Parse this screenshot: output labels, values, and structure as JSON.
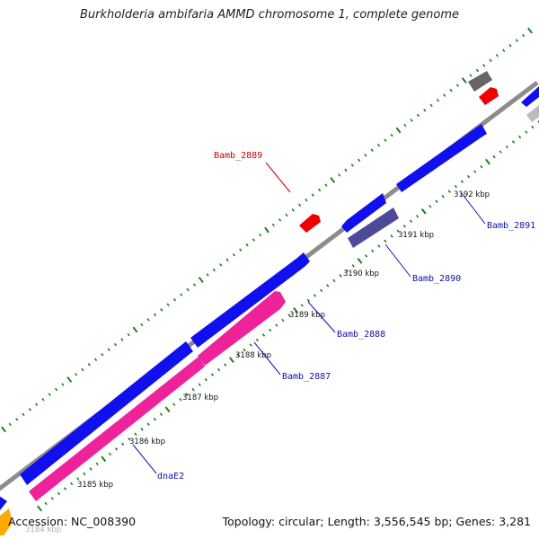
{
  "title": "Burkholderia ambifaria AMMD chromosome 1, complete genome",
  "footer": {
    "accession": "Accession: NC_008390",
    "summary": "Topology: circular; Length: 3,556,545 bp; Genes: 3,281"
  },
  "colors": {
    "backbone": "#8c8c8c",
    "tick": "#1a7f1a",
    "forward_gene": "#1010ee",
    "reverse_gene": "#ee2299",
    "pseudo_gene": "#4a4a99",
    "rna_gene": "#ee0000",
    "other_gene": "#666666",
    "highlight_label": "#cc0000",
    "gene_label": "#1111aa"
  },
  "tick_labels": [
    "3184 kbp",
    "3185 kbp",
    "3186 kbp",
    "3187 kbp",
    "3188 kbp",
    "3189 kbp",
    "3190 kbp",
    "3191 kbp",
    "3192 kbp"
  ],
  "gene_labels": [
    {
      "name": "dnaE2",
      "kind": "normal"
    },
    {
      "name": "Bamb_2887",
      "kind": "normal"
    },
    {
      "name": "Bamb_2888",
      "kind": "normal"
    },
    {
      "name": "Bamb_2889",
      "kind": "highlight"
    },
    {
      "name": "Bamb_2890",
      "kind": "normal"
    },
    {
      "name": "Bamb_2891",
      "kind": "normal"
    }
  ]
}
